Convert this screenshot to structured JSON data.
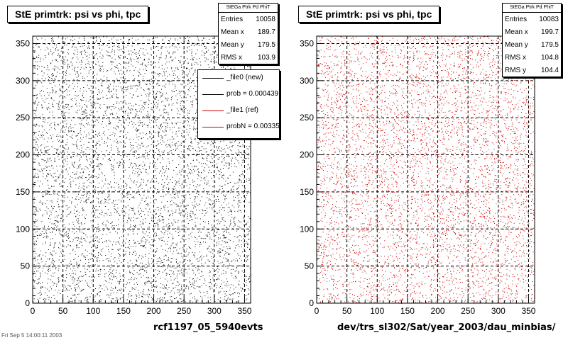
{
  "left": {
    "title": "StE primtrk: psi vs phi, tpc",
    "xtitle": "rcf1197_05_5940evts",
    "stats": {
      "header": "StEGa Ptrk Pd PhiT",
      "rows": [
        {
          "label": "Entries",
          "value": "10058"
        },
        {
          "label": "Mean x",
          "value": "189.7"
        },
        {
          "label": "Mean y",
          "value": "179.5"
        },
        {
          "label": "RMS x",
          "value": "103.9"
        }
      ]
    },
    "legend": [
      {
        "label": "_file0 (new)",
        "color": "#000000"
      },
      {
        "label": "prob = 0.000439",
        "color": "#000000"
      },
      {
        "label": "_file1 (ref)",
        "color": "#cc0000"
      },
      {
        "label": "probN = 0.00335",
        "color": "#cc0000"
      }
    ]
  },
  "right": {
    "title": "StE primtrk: psi vs phi, tpc",
    "xtitle": "dev/trs_sl302/Sat/year_2003/dau_minbias/",
    "stats": {
      "header": "StEGa Ptrk Pd PhiT",
      "rows": [
        {
          "label": "Entries",
          "value": "10083"
        },
        {
          "label": "Mean x",
          "value": "199.7"
        },
        {
          "label": "Mean y",
          "value": "179.5"
        },
        {
          "label": "RMS x",
          "value": "104.8"
        },
        {
          "label": "RMS y",
          "value": "104.4"
        }
      ]
    }
  },
  "footer": "Fri Sep 5 14:00:11 2003",
  "chart_data": [
    {
      "type": "scatter",
      "title": "StE primtrk: psi vs phi, tpc",
      "xlabel": "rcf1197_05_5940evts",
      "ylabel": "",
      "xlim": [
        0,
        360
      ],
      "ylim": [
        0,
        360
      ],
      "xticks": [
        0,
        50,
        100,
        150,
        200,
        250,
        300,
        350
      ],
      "yticks": [
        0,
        50,
        100,
        150,
        200,
        250,
        300,
        350
      ],
      "grid": true,
      "marker_color": "#000000",
      "entries": 10058,
      "mean_x": 189.7,
      "mean_y": 179.5,
      "rms_x": 103.9,
      "distribution": "approximately uniform 2D density over 0-360 x 0-360",
      "legend_placement": "top-right"
    },
    {
      "type": "scatter",
      "title": "StE primtrk: psi vs phi, tpc",
      "xlabel": "dev/trs_sl302/Sat/year_2003/dau_minbias/",
      "ylabel": "",
      "xlim": [
        0,
        360
      ],
      "ylim": [
        0,
        360
      ],
      "xticks": [
        0,
        50,
        100,
        150,
        200,
        250,
        300,
        350
      ],
      "yticks": [
        0,
        50,
        100,
        150,
        200,
        250,
        300,
        350
      ],
      "grid": true,
      "marker_color": "#cc0000",
      "entries": 10083,
      "mean_x": 199.7,
      "mean_y": 179.5,
      "rms_x": 104.8,
      "rms_y": 104.4,
      "distribution": "approximately uniform 2D density over 0-360 x 0-360"
    }
  ]
}
